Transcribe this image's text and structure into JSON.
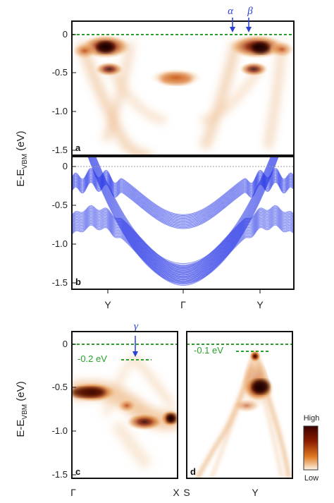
{
  "figure": {
    "y_axis_label_top": {
      "main": "E-E",
      "sub": "VBM",
      "unit": " (eV)"
    },
    "y_axis_label_bottom": {
      "main": "E-E",
      "sub": "VBM",
      "unit": " (eV)"
    },
    "panels": [
      {
        "id": "a",
        "label": "a",
        "type": "ARPES intensity map",
        "yticks": [
          "0",
          "-0.5",
          "-1.0",
          "-1.5"
        ],
        "ylim": [
          -1.55,
          0.08
        ]
      },
      {
        "id": "b",
        "label": "b",
        "type": "calculated bands",
        "yticks": [
          "0",
          "-0.5",
          "-1.0",
          "-1.5"
        ],
        "ylim": [
          -1.55,
          0.08
        ],
        "xticks": [
          "Y",
          "Γ",
          "Y"
        ]
      },
      {
        "id": "c",
        "label": "c",
        "type": "ARPES intensity map",
        "yticks": [
          "0",
          "-0.5",
          "-1.0",
          "-1.5"
        ],
        "ylim": [
          -1.55,
          0.08
        ],
        "xticks": [
          "Γ",
          "X"
        ],
        "annotation": "-0.2 eV"
      },
      {
        "id": "d",
        "label": "d",
        "type": "ARPES intensity map",
        "xticks": [
          "S",
          "Y"
        ],
        "annotation": "-0.1 eV"
      }
    ],
    "markers": {
      "alpha": "α",
      "beta": "β",
      "gamma": "γ"
    },
    "colorbar": {
      "high": "High",
      "low": "Low"
    },
    "colors": {
      "arpes_dark": "#3a0000",
      "arpes_mid": "#c4580c",
      "arpes_light": "#f7d7b0",
      "bands": "#1e2ee6",
      "fermi_line": "#2aa02a",
      "arrow": "#2b3fd6"
    }
  }
}
